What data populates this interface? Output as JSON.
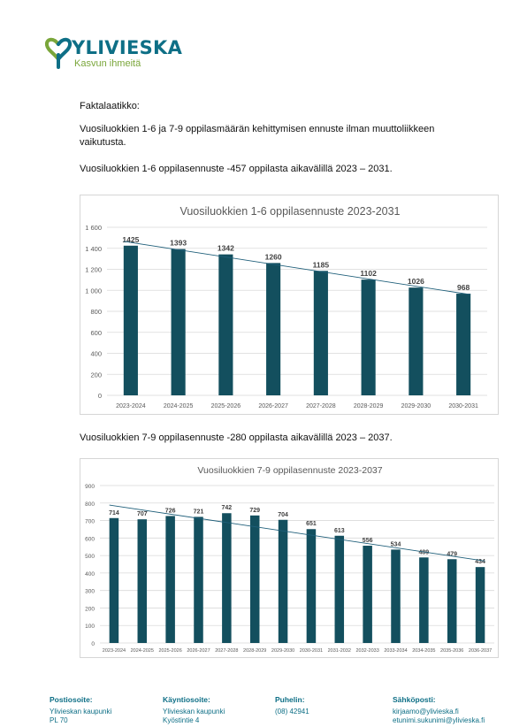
{
  "brand": {
    "name": "YLIVIESKA",
    "tagline": "Kasvun ihmeitä"
  },
  "text": {
    "heading": "Faktalaatikko:",
    "intro": "Vuosiluokkien 1-6 ja 7-9 oppilasmäärän kehittymisen ennuste ilman muuttoliikkeen vaikutusta.",
    "caption1": "Vuosiluokkien 1-6 oppilasennuste -457 oppilasta aikavälillä 2023 – 2031.",
    "caption2": "Vuosiluokkien 7-9 oppilasennuste -280 oppilasta aikavälillä 2023 – 2037."
  },
  "colors": {
    "bar": "#134f5e",
    "brand": "#0e6f86",
    "accent": "#7aa63a"
  },
  "chart_data": [
    {
      "type": "bar",
      "title": "Vuosiluokkien 1-6 oppilasennuste 2023-2031",
      "categories": [
        "2023-2024",
        "2024-2025",
        "2025-2026",
        "2026-2027",
        "2027-2028",
        "2028-2029",
        "2029-2030",
        "2030-2031"
      ],
      "values": [
        1425,
        1393,
        1342,
        1260,
        1185,
        1102,
        1026,
        968
      ],
      "ylim": [
        0,
        1600
      ],
      "yticks": [
        0,
        200,
        400,
        600,
        800,
        1000,
        1200,
        1400,
        1600
      ],
      "ytick_labels": [
        "0",
        "200",
        "400",
        "600",
        "800",
        "1 000",
        "1 200",
        "1 400",
        "1 600"
      ],
      "trendline": true,
      "grid": true
    },
    {
      "type": "bar",
      "title": "Vuosiluokkien 7-9 oppilasennuste 2023-2037",
      "categories": [
        "2023-2024",
        "2024-2025",
        "2025-2026",
        "2026-2027",
        "2027-2028",
        "2028-2029",
        "2029-2030",
        "2030-2031",
        "2031-2032",
        "2032-2033",
        "2033-2034",
        "2034-2035",
        "2035-2036",
        "2036-2037"
      ],
      "values": [
        714,
        707,
        726,
        721,
        742,
        729,
        704,
        651,
        613,
        556,
        534,
        489,
        479,
        434
      ],
      "ylim": [
        0,
        900
      ],
      "yticks": [
        0,
        100,
        200,
        300,
        400,
        500,
        600,
        700,
        800,
        900
      ],
      "ytick_labels": [
        "0",
        "100",
        "200",
        "300",
        "400",
        "500",
        "600",
        "700",
        "800",
        "900"
      ],
      "trendline": true,
      "grid": true
    }
  ],
  "footer": [
    {
      "heading": "Postiosoite:",
      "lines": [
        "Ylivieskan kaupunki",
        "PL 70"
      ]
    },
    {
      "heading": "Käyntiosoite:",
      "lines": [
        "Ylivieskan kaupunki",
        "Kyöstintie 4"
      ]
    },
    {
      "heading": "Puhelin:",
      "lines": [
        "(08) 42941"
      ]
    },
    {
      "heading": "Sähköposti:",
      "lines": [
        "kirjaamo@ylivieska.fi",
        "etunimi.sukunimi@ylivieska.fi"
      ]
    }
  ]
}
